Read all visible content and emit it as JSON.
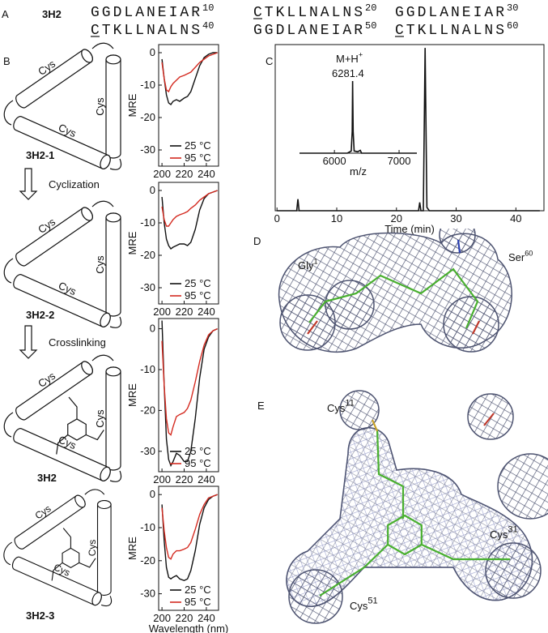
{
  "panel_labels": [
    "A",
    "B",
    "C",
    "D",
    "E"
  ],
  "sequence": {
    "name": "3H2",
    "segments": [
      {
        "residues": "GGDLANEIAR",
        "number": "10"
      },
      {
        "residues": "CTKLLNALNS",
        "number": "20"
      },
      {
        "residues": "GGDLANEIAR",
        "number": "30"
      },
      {
        "residues": "CTKLLNALNS",
        "number": "40"
      },
      {
        "residues": "GGDLANEIAR",
        "number": "50"
      },
      {
        "residues": "CTKLLNALNS",
        "number": "60"
      }
    ]
  },
  "diagram": {
    "constructs": [
      "3H2-1",
      "3H2-2",
      "3H2",
      "3H2-3"
    ],
    "steps": [
      "Cyclization",
      "Crosslinking"
    ],
    "helix_label": "Cys"
  },
  "structures": {
    "D": [
      {
        "text": "Gly",
        "sup": "1"
      },
      {
        "text": "Ser",
        "sup": "60"
      }
    ],
    "E": [
      {
        "text": "Cys",
        "sup": "11"
      },
      {
        "text": "Cys",
        "sup": "31"
      },
      {
        "text": "Cys",
        "sup": "51"
      }
    ]
  },
  "chart_data": [
    {
      "type": "line",
      "ylabel": "MRE",
      "legend": "lower right",
      "x": [
        200,
        202,
        204,
        206,
        208,
        210,
        213,
        216,
        220,
        223,
        226,
        230,
        234,
        238,
        242,
        246,
        250
      ],
      "series": [
        {
          "name": "25 °C",
          "color": "#111111",
          "values": [
            -2,
            -8,
            -13,
            -15.5,
            -16,
            -15,
            -14.5,
            -15,
            -14,
            -13.5,
            -12,
            -8,
            -4,
            -1.5,
            -0.5,
            0,
            0
          ]
        },
        {
          "name": "95 °C",
          "color": "#d42a20",
          "values": [
            -3,
            -8,
            -11.5,
            -12,
            -10.5,
            -9.5,
            -8.5,
            -7.5,
            -7,
            -6.5,
            -6,
            -4.5,
            -3,
            -2,
            -1,
            -0.5,
            0
          ]
        }
      ],
      "xlim": [
        197,
        251
      ],
      "ylim": [
        -35,
        2.5
      ],
      "xticks": [
        200,
        220,
        240
      ],
      "yticks": [
        0,
        -10,
        -20,
        -30
      ]
    },
    {
      "type": "line",
      "ylabel": "MRE",
      "legend": "lower right",
      "x": [
        200,
        202,
        204,
        206,
        208,
        210,
        213,
        216,
        220,
        223,
        226,
        230,
        234,
        238,
        242,
        246,
        250
      ],
      "series": [
        {
          "name": "25 °C",
          "color": "#111111",
          "values": [
            -2,
            -10,
            -15,
            -17,
            -18,
            -17.5,
            -17,
            -16.5,
            -16.5,
            -17,
            -16,
            -12,
            -6,
            -2.5,
            -1,
            -0.5,
            0
          ]
        },
        {
          "name": "95 °C",
          "color": "#d42a20",
          "values": [
            -5,
            -9,
            -11,
            -11,
            -10,
            -9,
            -8,
            -7.5,
            -7,
            -6.5,
            -5.5,
            -4.5,
            -3,
            -2,
            -1,
            -0.5,
            0
          ]
        }
      ],
      "xlim": [
        197,
        251
      ],
      "ylim": [
        -35,
        2.5
      ],
      "xticks": [
        200,
        220,
        240
      ],
      "yticks": [
        0,
        -10,
        -20,
        -30
      ]
    },
    {
      "type": "line",
      "ylabel": "MRE",
      "legend": "lower right",
      "x": [
        200,
        202,
        204,
        206,
        208,
        210,
        213,
        216,
        220,
        223,
        226,
        230,
        234,
        238,
        242,
        246,
        250
      ],
      "series": [
        {
          "name": "25 °C",
          "color": "#111111",
          "values": [
            2,
            -14,
            -27,
            -32,
            -33.5,
            -32.5,
            -30.5,
            -31,
            -32.5,
            -32.5,
            -30,
            -22,
            -12,
            -5,
            -2,
            -0.5,
            0
          ]
        },
        {
          "name": "95 °C",
          "color": "#d42a20",
          "values": [
            -3,
            -14,
            -22,
            -25.5,
            -26,
            -24,
            -21.5,
            -21,
            -20.5,
            -19.5,
            -17.5,
            -13,
            -8,
            -4,
            -1.5,
            -0.5,
            0
          ]
        }
      ],
      "xlim": [
        197,
        251
      ],
      "ylim": [
        -35,
        2.5
      ],
      "xticks": [
        200,
        220,
        240
      ],
      "yticks": [
        0,
        -10,
        -20,
        -30
      ]
    },
    {
      "type": "line",
      "ylabel": "MRE",
      "xlabel": "Wavelength (nm)",
      "legend": "lower right",
      "x": [
        200,
        202,
        204,
        206,
        208,
        210,
        213,
        216,
        220,
        223,
        226,
        230,
        234,
        238,
        242,
        246,
        250
      ],
      "series": [
        {
          "name": "25 °C",
          "color": "#111111",
          "values": [
            -3,
            -14,
            -22,
            -25,
            -25.5,
            -25,
            -24.5,
            -25.5,
            -26,
            -25.5,
            -23,
            -17,
            -9,
            -4,
            -1.5,
            -0.5,
            0
          ]
        },
        {
          "name": "95 °C",
          "color": "#d42a20",
          "values": [
            -4,
            -11,
            -16,
            -19,
            -19.5,
            -18,
            -17,
            -17,
            -16.5,
            -16,
            -14.5,
            -10.5,
            -6,
            -3,
            -1,
            -0.5,
            0
          ]
        }
      ],
      "xlim": [
        197,
        251
      ],
      "ylim": [
        -35,
        2.5
      ],
      "xticks": [
        200,
        220,
        240
      ],
      "yticks": [
        0,
        -10,
        -20,
        -30
      ]
    },
    {
      "type": "line",
      "xlabel": "Time (min)",
      "color": "#111111",
      "x": [
        0,
        3.3,
        3.5,
        3.7,
        10,
        23.7,
        23.9,
        24.1,
        24.5,
        24.8,
        25.1,
        25.5,
        30,
        44
      ],
      "values": [
        0,
        0,
        0.07,
        0,
        0,
        0,
        0.05,
        0,
        0,
        0.98,
        0.02,
        0,
        0,
        0
      ],
      "xlim": [
        -0.3,
        44.7
      ],
      "ylim": [
        0,
        1
      ],
      "xticks": [
        0,
        10,
        20,
        30,
        40
      ]
    },
    {
      "type": "line",
      "xlabel": "m/z",
      "color": "#111111",
      "annotation": {
        "text": "M+H",
        "sup": "+",
        "label": "6281.4"
      },
      "x": [
        5460,
        6200,
        6260,
        6275,
        6281.4,
        6290,
        6305,
        6360,
        6400,
        6420,
        7275
      ],
      "values": [
        0,
        0,
        0.03,
        0.3,
        1,
        0.3,
        0.03,
        0.02,
        0.04,
        0,
        0
      ],
      "xlim": [
        5460,
        7275
      ],
      "ylim": [
        0,
        1
      ],
      "xticks": [
        6000,
        7000
      ]
    }
  ]
}
